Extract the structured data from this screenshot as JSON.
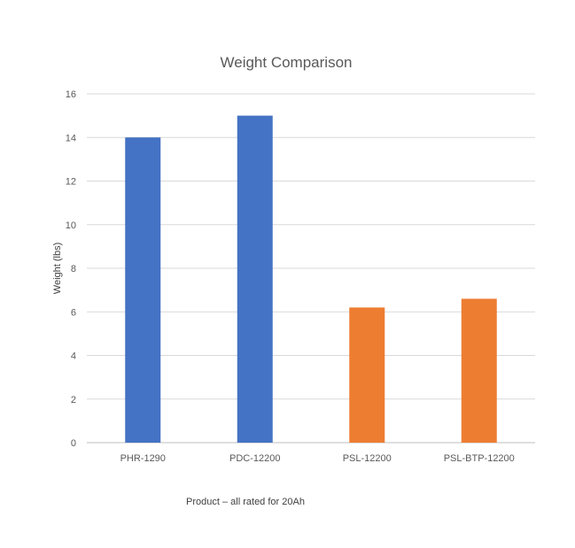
{
  "chart_data": {
    "type": "bar",
    "title": "Weight Comparison",
    "xlabel": "Product – all rated for 20Ah",
    "ylabel": "Weight (lbs)",
    "categories": [
      "PHR-1290",
      "PDC-12200",
      "PSL-12200",
      "PSL-BTP-12200"
    ],
    "values": [
      14,
      15,
      6.2,
      6.6
    ],
    "bar_colors": [
      "#4472C4",
      "#4472C4",
      "#ED7D31",
      "#ED7D31"
    ],
    "ylim": [
      0,
      16
    ],
    "yticks": [
      0,
      2,
      4,
      6,
      8,
      10,
      12,
      14,
      16
    ],
    "grid": true,
    "legend": "none"
  }
}
